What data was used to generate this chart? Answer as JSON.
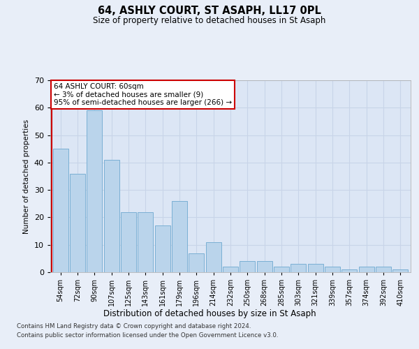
{
  "title": "64, ASHLY COURT, ST ASAPH, LL17 0PL",
  "subtitle": "Size of property relative to detached houses in St Asaph",
  "xlabel": "Distribution of detached houses by size in St Asaph",
  "ylabel": "Number of detached properties",
  "categories": [
    "54sqm",
    "72sqm",
    "90sqm",
    "107sqm",
    "125sqm",
    "143sqm",
    "161sqm",
    "179sqm",
    "196sqm",
    "214sqm",
    "232sqm",
    "250sqm",
    "268sqm",
    "285sqm",
    "303sqm",
    "321sqm",
    "339sqm",
    "357sqm",
    "374sqm",
    "392sqm",
    "410sqm"
  ],
  "values": [
    45,
    36,
    59,
    41,
    22,
    22,
    17,
    26,
    7,
    11,
    2,
    4,
    4,
    2,
    3,
    3,
    2,
    1,
    2,
    2,
    1
  ],
  "bar_color": "#bad4eb",
  "bar_edge_color": "#7aafd4",
  "vline_color": "#cc0000",
  "annotation_text": "64 ASHLY COURT: 60sqm\n← 3% of detached houses are smaller (9)\n95% of semi-detached houses are larger (266) →",
  "annotation_box_color": "#ffffff",
  "annotation_box_edge_color": "#cc0000",
  "ylim": [
    0,
    70
  ],
  "yticks": [
    0,
    10,
    20,
    30,
    40,
    50,
    60,
    70
  ],
  "bg_color": "#e8eef8",
  "plot_bg_color": "#dce6f5",
  "grid_color": "#c8d4e8",
  "footer1": "Contains HM Land Registry data © Crown copyright and database right 2024.",
  "footer2": "Contains public sector information licensed under the Open Government Licence v3.0."
}
